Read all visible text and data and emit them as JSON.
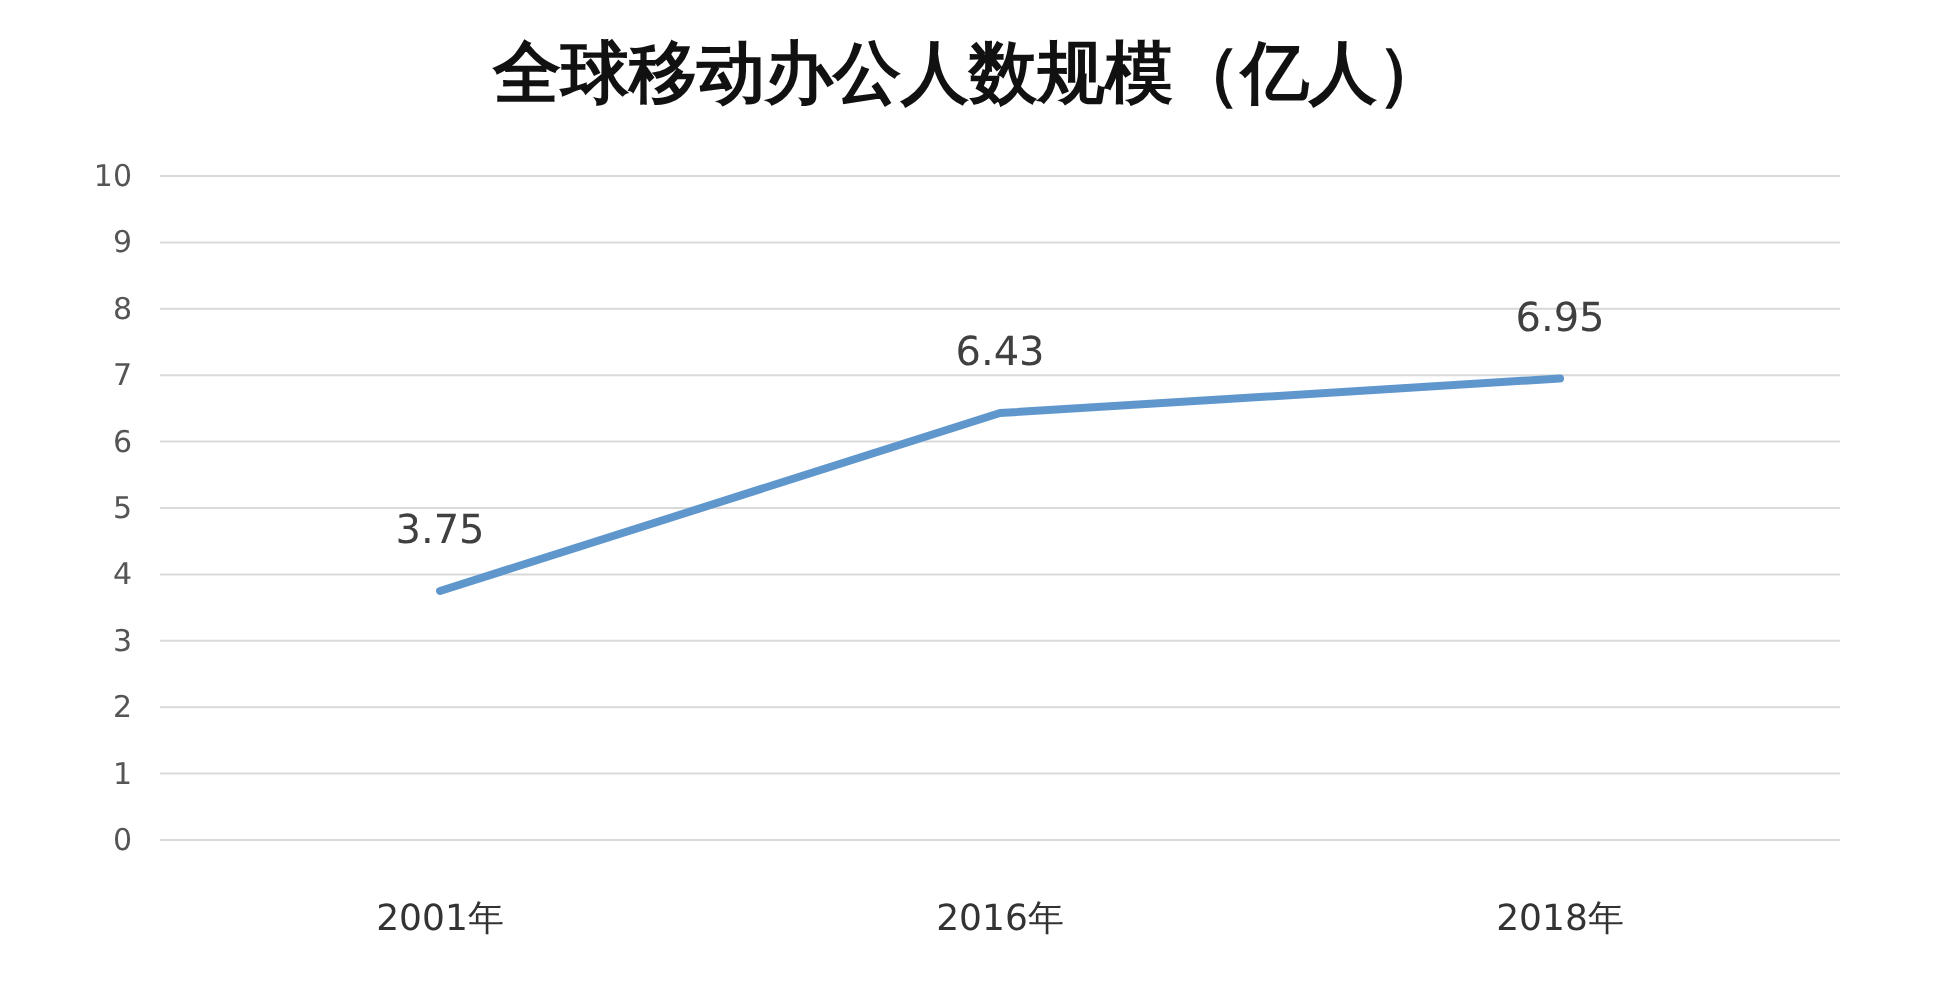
{
  "chart_data": {
    "type": "line",
    "title": "全球移动办公人数规模（亿人）",
    "categories": [
      "2001年",
      "2016年",
      "2018年"
    ],
    "values": [
      3.75,
      6.43,
      6.95
    ],
    "color": "#5f97cd",
    "ylim": [
      0,
      10
    ],
    "yticks": [
      0,
      1,
      2,
      3,
      4,
      5,
      6,
      7,
      8,
      9,
      10
    ],
    "grid": "y",
    "data_labels": true
  }
}
